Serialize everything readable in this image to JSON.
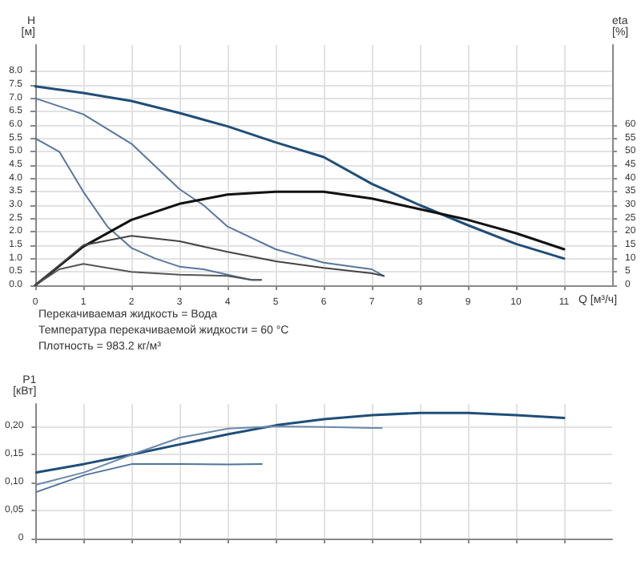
{
  "chart_data": [
    {
      "type": "line",
      "ylabel": "H [м]",
      "y2label": "eta [%]",
      "xlabel": "Q [м³/ч]",
      "xlim": [
        0,
        12
      ],
      "xticks": [
        0,
        1,
        2,
        3,
        4,
        5,
        6,
        7,
        8,
        9,
        10,
        11
      ],
      "ylim": [
        0,
        9
      ],
      "yticks": [
        {
          "value": 0,
          "label": "0.0"
        },
        0.5,
        {
          "value": 1,
          "label": "1.0"
        },
        1.5,
        {
          "value": 2,
          "label": "2.0"
        },
        2.5,
        {
          "value": 3,
          "label": "3.0"
        },
        3.5,
        {
          "value": 4,
          "label": "4.0"
        },
        4.5,
        {
          "value": 5,
          "label": "5.0"
        },
        5.5,
        {
          "value": 6,
          "label": "6.0"
        },
        6.5,
        {
          "value": 7,
          "label": "7.0"
        },
        7.5,
        {
          "value": 8,
          "label": "8.0"
        }
      ],
      "y2lim": [
        0,
        90
      ],
      "y2ticks": [
        0,
        5,
        10,
        15,
        20,
        25,
        30,
        35,
        40,
        45,
        50,
        55,
        60
      ],
      "grid": true,
      "marker": "none",
      "line_style": "solid",
      "series": [
        {
          "color": "#1f4e79",
          "x": [
            0,
            1,
            2,
            3,
            4,
            5,
            6,
            7,
            8,
            9,
            10,
            11
          ],
          "values": [
            7.45,
            7.2,
            6.9,
            6.45,
            5.95,
            5.35,
            4.8,
            3.8,
            3.0,
            2.25,
            1.55,
            1.0
          ]
        },
        {
          "color": "#5877a0",
          "x": [
            0,
            1,
            2,
            3,
            3.5,
            4,
            5,
            6,
            7,
            7.25
          ],
          "values": [
            7.0,
            6.4,
            5.3,
            3.6,
            3.0,
            2.2,
            1.35,
            0.85,
            0.6,
            0.35
          ]
        },
        {
          "color": "#5877a0",
          "x": [
            0,
            0.5,
            1,
            1.5,
            2,
            2.5,
            3,
            3.5,
            4,
            4.5,
            4.7
          ],
          "values": [
            5.5,
            5.0,
            3.5,
            2.2,
            1.4,
            1.0,
            0.7,
            0.6,
            0.4,
            0.2,
            0.2
          ]
        },
        {
          "color": "#111111",
          "axis": "y2",
          "x": [
            0,
            1,
            2,
            3,
            4,
            5,
            6,
            7,
            8,
            9,
            10,
            11
          ],
          "values": [
            0,
            14.5,
            24.5,
            30.5,
            34,
            35,
            35,
            32.5,
            28.5,
            24.5,
            19.5,
            13.5
          ]
        },
        {
          "color": "#444444",
          "axis": "y2",
          "x": [
            0,
            1,
            2,
            3,
            4,
            5,
            6,
            7,
            7.25
          ],
          "values": [
            0,
            15,
            18.5,
            16.5,
            12.5,
            9,
            6.5,
            4.5,
            3.5
          ]
        },
        {
          "color": "#555555",
          "axis": "y2",
          "x": [
            0,
            0.5,
            1,
            2,
            3,
            4,
            4.5,
            4.7
          ],
          "values": [
            0,
            6,
            8,
            5,
            4,
            3.5,
            2,
            2
          ]
        }
      ],
      "annotations": [
        "Перекачиваемая жидкость = Вода",
        "Температура перекачиваемой жидкости = 60 °C",
        "Плотность = 983.2 кг/м³"
      ]
    },
    {
      "type": "line",
      "ylabel": "P1 [кВт]",
      "xlim": [
        0,
        12
      ],
      "xticks": [
        0,
        1,
        2,
        3,
        4,
        5,
        6,
        7,
        8,
        9,
        10,
        11
      ],
      "ylim": [
        0,
        0.24
      ],
      "yticks": [
        0,
        {
          "value": 0.05,
          "label": "0,05"
        },
        {
          "value": 0.1,
          "label": "0,10"
        },
        {
          "value": 0.15,
          "label": "0,15"
        },
        {
          "value": 0.2,
          "label": "0,20"
        }
      ],
      "tick_labels": "y",
      "grid": true,
      "marker": "none",
      "line_style": "solid",
      "series": [
        {
          "color": "#1f4e79",
          "x": [
            0,
            1,
            2,
            3,
            4,
            5,
            6,
            7,
            8,
            9,
            10,
            11
          ],
          "values": [
            0.118,
            0.133,
            0.15,
            0.168,
            0.186,
            0.202,
            0.213,
            0.22,
            0.224,
            0.224,
            0.22,
            0.215
          ]
        },
        {
          "color": "#6b88ad",
          "x": [
            0,
            1,
            2,
            3,
            4,
            5,
            6,
            7,
            7.2
          ],
          "values": [
            0.096,
            0.118,
            0.15,
            0.18,
            0.196,
            0.2,
            0.199,
            0.197,
            0.197
          ]
        },
        {
          "color": "#4f73a0",
          "x": [
            0,
            1,
            2,
            3,
            4,
            4.7
          ],
          "values": [
            0.083,
            0.113,
            0.133,
            0.133,
            0.132,
            0.133
          ]
        }
      ]
    }
  ]
}
